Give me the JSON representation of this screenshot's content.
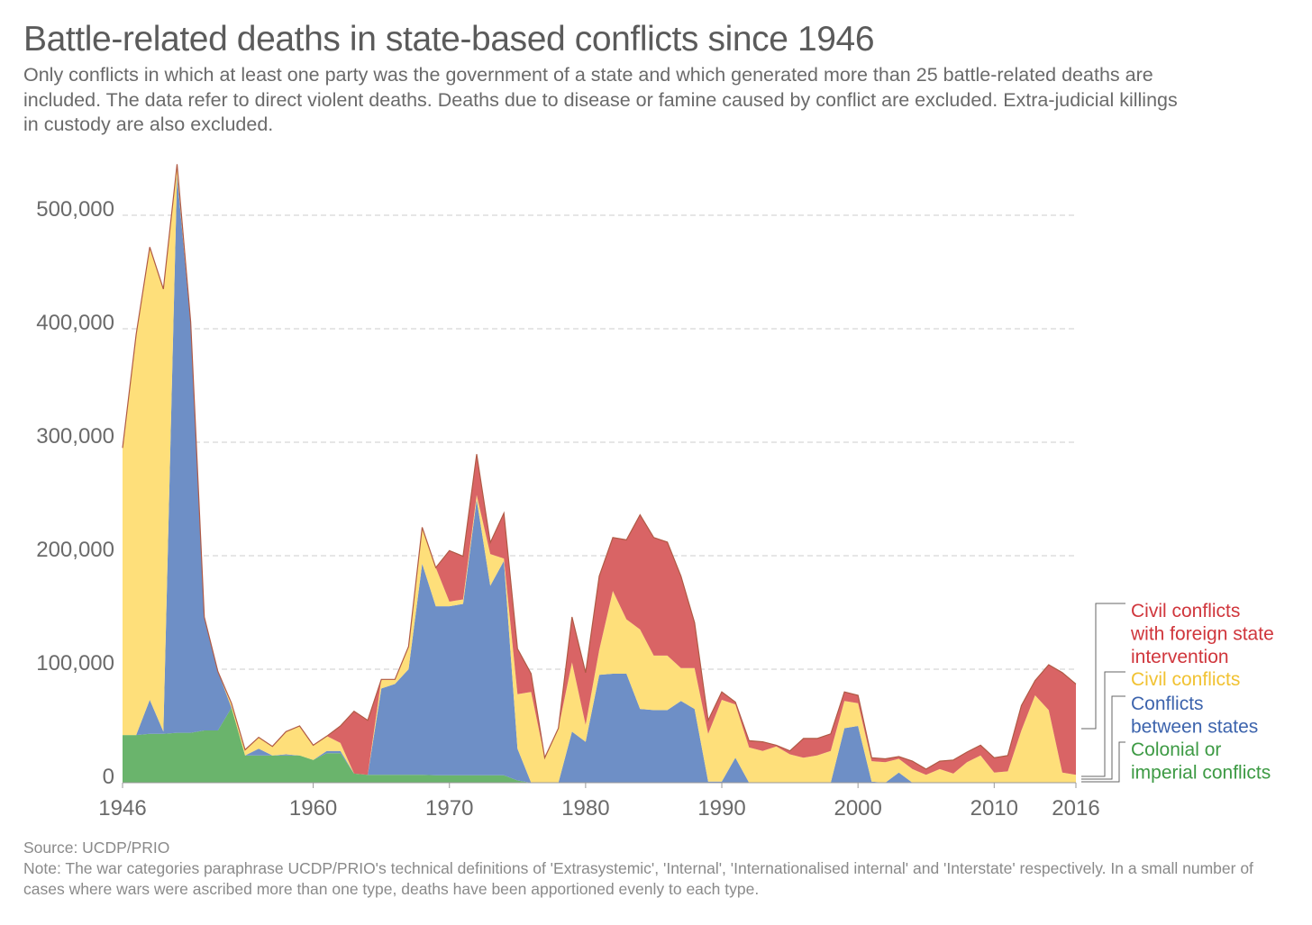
{
  "header": {
    "title": "Battle-related deaths in state-based conflicts since 1946",
    "subtitle": "Only conflicts in which at least one party was the government of a state and which generated more than 25 battle-related deaths are included. The data refer to direct violent deaths. Deaths due to disease or famine caused by conflict are excluded. Extra-judicial killings in custody are also excluded."
  },
  "footer": {
    "source": "Source: UCDP/PRIO",
    "note": "Note: The war categories paraphrase UCDP/PRIO's technical definitions of 'Extrasystemic', 'Internal', 'Internationalised internal' and 'Interstate' respectively. In a small number of cases where wars were ascribed more than one type, deaths have been apportioned evenly to each type."
  },
  "colors": {
    "colonial": "#6ab46c",
    "interstate": "#6e8fc6",
    "civil": "#fedf7a",
    "intervention": "#d96465",
    "outline": "#b05a45",
    "grid": "#dddddd"
  },
  "chart_data": {
    "type": "area",
    "stacked": true,
    "x": [
      1946,
      1947,
      1948,
      1949,
      1950,
      1951,
      1952,
      1953,
      1954,
      1955,
      1956,
      1957,
      1958,
      1959,
      1960,
      1961,
      1962,
      1963,
      1964,
      1965,
      1966,
      1967,
      1968,
      1969,
      1970,
      1971,
      1972,
      1973,
      1974,
      1975,
      1976,
      1977,
      1978,
      1979,
      1980,
      1981,
      1982,
      1983,
      1984,
      1985,
      1986,
      1987,
      1988,
      1989,
      1990,
      1991,
      1992,
      1993,
      1994,
      1995,
      1996,
      1997,
      1998,
      1999,
      2000,
      2001,
      2002,
      2003,
      2004,
      2005,
      2006,
      2007,
      2008,
      2009,
      2010,
      2011,
      2012,
      2013,
      2014,
      2015,
      2016
    ],
    "series": [
      {
        "name": "Colonial or imperial conflicts",
        "color": "#6ab46c",
        "values": [
          42000,
          42000,
          43000,
          43000,
          44000,
          44000,
          46000,
          46000,
          66000,
          24000,
          24000,
          24000,
          24000,
          24000,
          20000,
          26000,
          26000,
          8000,
          7000,
          7000,
          7000,
          7000,
          7000,
          6500,
          6500,
          6500,
          6500,
          6500,
          6500,
          2000,
          0,
          0,
          0,
          0,
          0,
          0,
          0,
          0,
          0,
          0,
          0,
          0,
          0,
          0,
          0,
          0,
          0,
          0,
          0,
          0,
          0,
          0,
          0,
          0,
          0,
          0,
          0,
          0,
          0,
          0,
          0,
          0,
          0,
          0,
          0,
          0,
          0,
          0,
          0,
          0,
          0
        ]
      },
      {
        "name": "Conflicts between states",
        "color": "#6e8fc6",
        "values": [
          0,
          0,
          30000,
          2000,
          492000,
          360000,
          100000,
          52000,
          0,
          0,
          6000,
          0,
          1000,
          0,
          0,
          2000,
          2000,
          0,
          0,
          76000,
          80000,
          93000,
          186000,
          149000,
          149000,
          151000,
          243000,
          167000,
          189000,
          28000,
          0,
          0,
          0,
          45000,
          36000,
          95000,
          96000,
          96000,
          65000,
          64000,
          64000,
          72000,
          65000,
          1000,
          1000,
          22000,
          0,
          0,
          0,
          0,
          0,
          0,
          0,
          48000,
          50000,
          1000,
          0,
          9000,
          0,
          0,
          0,
          0,
          0,
          0,
          0,
          0,
          0,
          0,
          0,
          0,
          0
        ]
      },
      {
        "name": "Civil conflicts",
        "color": "#fedf7a",
        "values": [
          253000,
          353000,
          399000,
          390000,
          9000,
          2000,
          0,
          0,
          4000,
          5000,
          10000,
          8000,
          20000,
          26000,
          13000,
          13000,
          7000,
          0,
          0,
          8000,
          4000,
          20000,
          32000,
          34000,
          4000,
          4000,
          4000,
          28000,
          2000,
          48000,
          80000,
          22000,
          48000,
          61000,
          15000,
          22000,
          73000,
          48000,
          70000,
          48000,
          48000,
          29000,
          36000,
          42000,
          72000,
          47000,
          31000,
          28000,
          32000,
          25000,
          22000,
          24000,
          28000,
          24000,
          20000,
          18000,
          18000,
          12000,
          12000,
          7000,
          12000,
          8000,
          18000,
          24000,
          9000,
          10000,
          46000,
          77000,
          64000,
          9000,
          7000
        ]
      },
      {
        "name": "Civil conflicts with foreign state intervention",
        "color": "#d96465",
        "values": [
          0,
          0,
          0,
          0,
          0,
          0,
          0,
          0,
          0,
          0,
          0,
          0,
          0,
          0,
          0,
          0,
          15000,
          55000,
          48000,
          0,
          0,
          0,
          0,
          0,
          45000,
          38000,
          36000,
          10000,
          40000,
          40000,
          16000,
          0,
          0,
          40000,
          46000,
          65000,
          47000,
          70000,
          101000,
          104000,
          100000,
          81000,
          40000,
          12000,
          7000,
          2000,
          6000,
          8000,
          1000,
          3000,
          17000,
          15000,
          15000,
          8000,
          7000,
          3000,
          3000,
          2000,
          7000,
          5000,
          7000,
          12000,
          9000,
          9000,
          13000,
          14000,
          22000,
          13000,
          40000,
          88000,
          80000
        ]
      }
    ],
    "ylim": [
      0,
      550000
    ],
    "xlim": [
      1946,
      2016
    ],
    "yticks": [
      {
        "value": 0,
        "label": "0"
      },
      {
        "value": 100000,
        "label": "100,000"
      },
      {
        "value": 200000,
        "label": "200,000"
      },
      {
        "value": 300000,
        "label": "300,000"
      },
      {
        "value": 400000,
        "label": "400,000"
      },
      {
        "value": 500000,
        "label": "500,000"
      }
    ],
    "xticks": [
      {
        "value": 1946,
        "label": "1946"
      },
      {
        "value": 1960,
        "label": "1960"
      },
      {
        "value": 1970,
        "label": "1970"
      },
      {
        "value": 1980,
        "label": "1980"
      },
      {
        "value": 1990,
        "label": "1990"
      },
      {
        "value": 2000,
        "label": "2000"
      },
      {
        "value": 2010,
        "label": "2010"
      },
      {
        "value": 2016,
        "label": "2016"
      }
    ],
    "grid": "horizontal dashed",
    "legend": {
      "placement": "right",
      "entries": [
        {
          "lines": [
            "Civil conflicts",
            "with foreign state",
            "intervention"
          ],
          "color": "#d0363c"
        },
        {
          "lines": [
            "Civil conflicts"
          ],
          "color": "#f1c232"
        },
        {
          "lines": [
            "Conflicts",
            "between states"
          ],
          "color": "#3d64ad"
        },
        {
          "lines": [
            "Colonial or",
            "imperial conflicts"
          ],
          "color": "#3d9a44"
        }
      ]
    }
  }
}
